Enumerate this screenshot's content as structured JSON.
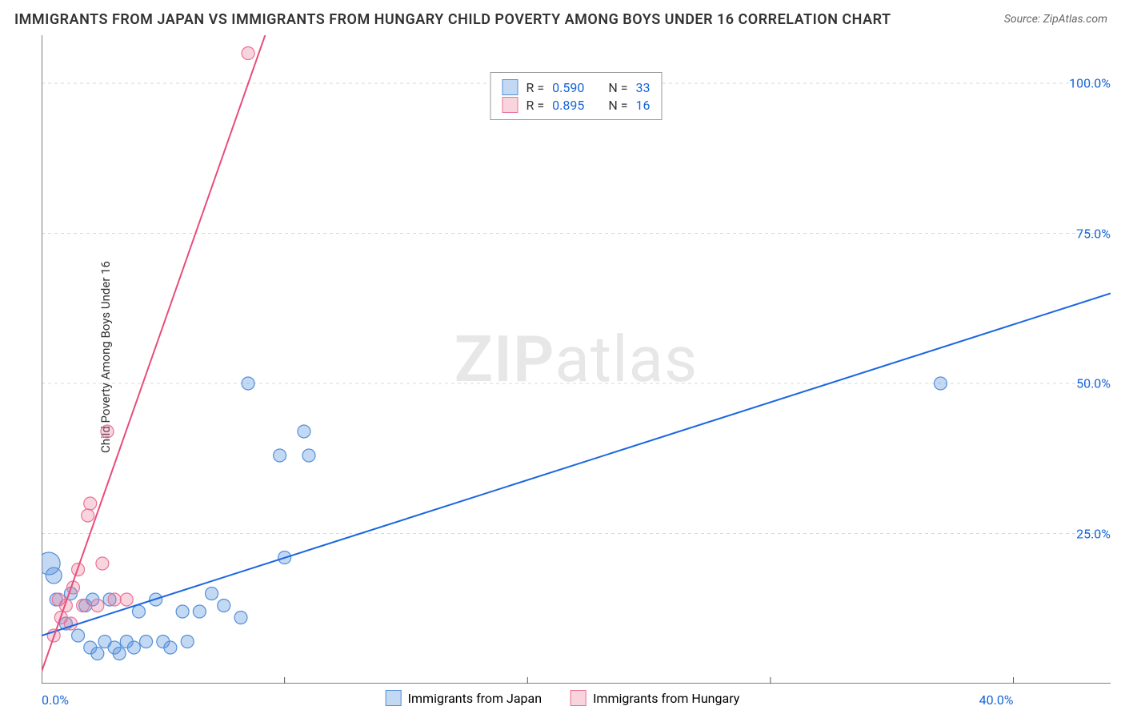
{
  "title": "IMMIGRANTS FROM JAPAN VS IMMIGRANTS FROM HUNGARY CHILD POVERTY AMONG BOYS UNDER 16 CORRELATION CHART",
  "source_label": "Source: ZipAtlas.com",
  "ylabel": "Child Poverty Among Boys Under 16",
  "watermark": {
    "bold": "ZIP",
    "rest": "atlas"
  },
  "chart": {
    "type": "scatter",
    "background_color": "#ffffff",
    "grid_color": "#d9d9d9",
    "axis_color": "#555555",
    "xlim": [
      0,
      44
    ],
    "ylim": [
      0,
      108
    ],
    "xticks": [
      0,
      10,
      20,
      30,
      40
    ],
    "xtick_labels": [
      "0.0%",
      "",
      "",
      "",
      "40.0%"
    ],
    "yticks": [
      25,
      50,
      75,
      100
    ],
    "ytick_labels": [
      "25.0%",
      "50.0%",
      "75.0%",
      "100.0%"
    ],
    "label_fontsize": 16,
    "label_color": "#1565d8",
    "series": [
      {
        "name": "Immigrants from Japan",
        "marker_fill": "rgba(83,144,217,0.35)",
        "marker_stroke": "#5390d9",
        "marker_radius": 8,
        "line_color": "#1a66e0",
        "line_width": 2,
        "trend": {
          "x1": 0,
          "y1": 8,
          "x2": 44,
          "y2": 65
        },
        "points": [
          {
            "x": 0.3,
            "y": 20,
            "r": 14
          },
          {
            "x": 0.5,
            "y": 18,
            "r": 10
          },
          {
            "x": 0.6,
            "y": 14
          },
          {
            "x": 1.0,
            "y": 10
          },
          {
            "x": 1.2,
            "y": 15
          },
          {
            "x": 1.5,
            "y": 8
          },
          {
            "x": 1.8,
            "y": 13
          },
          {
            "x": 2.0,
            "y": 6
          },
          {
            "x": 2.1,
            "y": 14
          },
          {
            "x": 2.3,
            "y": 5
          },
          {
            "x": 2.6,
            "y": 7
          },
          {
            "x": 2.8,
            "y": 14
          },
          {
            "x": 3.0,
            "y": 6
          },
          {
            "x": 3.2,
            "y": 5
          },
          {
            "x": 3.5,
            "y": 7
          },
          {
            "x": 3.8,
            "y": 6
          },
          {
            "x": 4.0,
            "y": 12
          },
          {
            "x": 4.3,
            "y": 7
          },
          {
            "x": 4.7,
            "y": 14
          },
          {
            "x": 5.0,
            "y": 7
          },
          {
            "x": 5.3,
            "y": 6
          },
          {
            "x": 5.8,
            "y": 12
          },
          {
            "x": 6.0,
            "y": 7
          },
          {
            "x": 6.5,
            "y": 12
          },
          {
            "x": 7.0,
            "y": 15
          },
          {
            "x": 7.5,
            "y": 13
          },
          {
            "x": 8.2,
            "y": 11
          },
          {
            "x": 8.5,
            "y": 50
          },
          {
            "x": 9.8,
            "y": 38
          },
          {
            "x": 10.0,
            "y": 21
          },
          {
            "x": 10.8,
            "y": 42
          },
          {
            "x": 11.0,
            "y": 38
          },
          {
            "x": 37.0,
            "y": 50
          }
        ]
      },
      {
        "name": "Immigrants from Hungary",
        "marker_fill": "rgba(233,114,148,0.30)",
        "marker_stroke": "#e97294",
        "marker_radius": 8,
        "line_color": "#e94d7a",
        "line_width": 2,
        "trend": {
          "x1": 0,
          "y1": 2,
          "x2": 9.2,
          "y2": 108
        },
        "points": [
          {
            "x": 0.5,
            "y": 8
          },
          {
            "x": 0.7,
            "y": 14
          },
          {
            "x": 0.8,
            "y": 11
          },
          {
            "x": 1.0,
            "y": 13
          },
          {
            "x": 1.2,
            "y": 10
          },
          {
            "x": 1.3,
            "y": 16
          },
          {
            "x": 1.5,
            "y": 19
          },
          {
            "x": 1.7,
            "y": 13
          },
          {
            "x": 1.9,
            "y": 28
          },
          {
            "x": 2.0,
            "y": 30
          },
          {
            "x": 2.3,
            "y": 13
          },
          {
            "x": 2.5,
            "y": 20
          },
          {
            "x": 2.7,
            "y": 42
          },
          {
            "x": 3.0,
            "y": 14
          },
          {
            "x": 3.5,
            "y": 14
          },
          {
            "x": 8.5,
            "y": 105
          }
        ]
      }
    ],
    "stats": [
      {
        "swatch_fill": "rgba(83,144,217,0.35)",
        "swatch_stroke": "#5390d9",
        "r": "0.590",
        "n": "33"
      },
      {
        "swatch_fill": "rgba(233,114,148,0.30)",
        "swatch_stroke": "#e97294",
        "r": "0.895",
        "n": "16"
      }
    ],
    "bottom_legend": [
      {
        "swatch_fill": "rgba(83,144,217,0.35)",
        "swatch_stroke": "#5390d9",
        "label": "Immigrants from Japan"
      },
      {
        "swatch_fill": "rgba(233,114,148,0.30)",
        "swatch_stroke": "#e97294",
        "label": "Immigrants from Hungary"
      }
    ]
  }
}
